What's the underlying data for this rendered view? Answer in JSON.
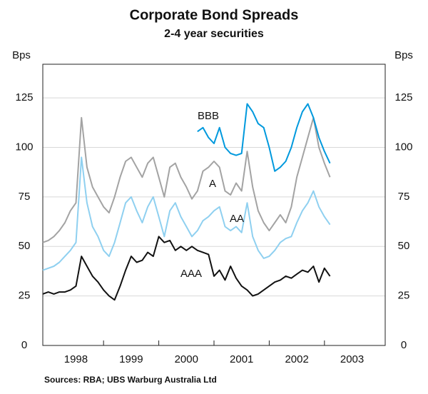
{
  "chart_data": {
    "type": "line",
    "title": "Corporate Bond Spreads",
    "subtitle": "2-4 year securities",
    "y_label": "Bps",
    "y2_label": "Bps",
    "source": "Sources: RBA; UBS Warburg Australia Ltd",
    "x": [
      1997.9,
      1998.0,
      1998.1,
      1998.2,
      1998.3,
      1998.4,
      1998.5,
      1998.6,
      1998.7,
      1998.8,
      1998.9,
      1999.0,
      1999.1,
      1999.2,
      1999.3,
      1999.4,
      1999.5,
      1999.6,
      1999.7,
      1999.8,
      1999.9,
      2000.0,
      2000.1,
      2000.2,
      2000.3,
      2000.4,
      2000.5,
      2000.6,
      2000.7,
      2000.8,
      2000.9,
      2001.0,
      2001.1,
      2001.2,
      2001.3,
      2001.4,
      2001.5,
      2001.6,
      2001.7,
      2001.8,
      2001.9,
      2002.0,
      2002.1,
      2002.2,
      2002.3,
      2002.4,
      2002.5,
      2002.6,
      2002.7,
      2002.8,
      2002.9,
      2003.0,
      2003.1
    ],
    "series": [
      {
        "name": "A",
        "color": "#a3a3a3",
        "values": [
          52,
          53,
          55,
          58,
          62,
          68,
          72,
          115,
          90,
          80,
          75,
          70,
          67,
          75,
          85,
          93,
          95,
          90,
          85,
          92,
          95,
          85,
          75,
          90,
          92,
          85,
          80,
          74,
          78,
          88,
          90,
          93,
          90,
          78,
          76,
          82,
          78,
          98,
          80,
          68,
          62,
          58,
          62,
          66,
          62,
          70,
          85,
          95,
          105,
          115,
          100,
          92,
          85
        ]
      },
      {
        "name": "AA",
        "color": "#8fd0f0",
        "values": [
          38,
          39,
          40,
          42,
          45,
          48,
          52,
          95,
          72,
          60,
          55,
          48,
          45,
          52,
          62,
          72,
          75,
          68,
          62,
          70,
          75,
          65,
          55,
          68,
          72,
          65,
          60,
          55,
          58,
          63,
          65,
          68,
          70,
          60,
          58,
          60,
          57,
          72,
          55,
          48,
          44,
          45,
          48,
          52,
          54,
          55,
          62,
          68,
          72,
          78,
          70,
          65,
          61
        ]
      },
      {
        "name": "AAA",
        "color": "#111111",
        "values": [
          26,
          27,
          26,
          27,
          27,
          28,
          30,
          45,
          40,
          35,
          32,
          28,
          25,
          23,
          30,
          38,
          45,
          42,
          43,
          47,
          45,
          55,
          52,
          53,
          48,
          50,
          48,
          50,
          48,
          47,
          46,
          35,
          38,
          33,
          40,
          34,
          30,
          28,
          25,
          26,
          28,
          30,
          32,
          33,
          35,
          34,
          36,
          38,
          37,
          40,
          32,
          39,
          35
        ]
      },
      {
        "name": "BBB",
        "color": "#0099dd",
        "values": [
          null,
          null,
          null,
          null,
          null,
          null,
          null,
          null,
          null,
          null,
          null,
          null,
          null,
          null,
          null,
          null,
          null,
          null,
          null,
          null,
          null,
          null,
          null,
          null,
          null,
          null,
          null,
          null,
          108,
          110,
          105,
          102,
          110,
          100,
          97,
          96,
          97,
          122,
          118,
          112,
          110,
          100,
          88,
          90,
          93,
          100,
          110,
          118,
          122,
          115,
          105,
          98,
          92
        ]
      }
    ],
    "xlim": [
      1997.9,
      2004.1
    ],
    "xticks": [
      {
        "value": 1998.5,
        "label": "1998"
      },
      {
        "value": 1999.5,
        "label": "1999"
      },
      {
        "value": 2000.5,
        "label": "2000"
      },
      {
        "value": 2001.5,
        "label": "2001"
      },
      {
        "value": 2002.5,
        "label": "2002"
      },
      {
        "value": 2003.5,
        "label": "2003"
      }
    ],
    "ylim": [
      0,
      142
    ],
    "yticks": [
      0,
      25,
      50,
      75,
      100,
      125
    ],
    "y2lim": [
      0,
      142
    ],
    "y2ticks": [
      0,
      25,
      50,
      75,
      100,
      125
    ],
    "grid": true
  }
}
